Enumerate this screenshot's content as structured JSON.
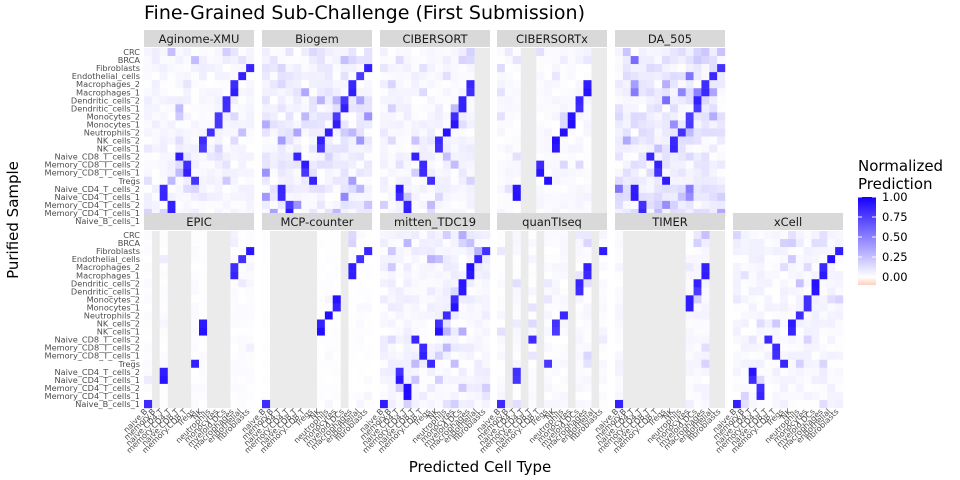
{
  "chart_data": {
    "type": "heatmap",
    "title": "Fine-Grained Sub-Challenge (First Submission)",
    "xlabel": "Predicted Cell Type",
    "ylabel": "Purified Sample",
    "legend": {
      "title_lines": [
        "Normalized",
        "Prediction"
      ],
      "ticks": [
        "1.00",
        "0.75",
        "0.50",
        "0.25",
        "0.00"
      ],
      "range": [
        -0.1,
        1.0
      ],
      "placement": "right",
      "colors": {
        "low": "#ffcfbf",
        "mid": "#ffffff",
        "high": "#1600ff"
      }
    },
    "panel_background": "#ebebeb",
    "strip_background": "#d9d9d9",
    "y_categories": [
      "CRC",
      "BRCA",
      "Fibroblasts",
      "Endothelial_cells",
      "Macrophages_2",
      "Macrophages_1",
      "Dendritic_cells_2",
      "Dendritic_cells_1",
      "Monocytes_2",
      "Monocytes_1",
      "Neutrophils_2",
      "NK_cells_2",
      "NK_cells_1",
      "Naive_CD8_T_cells_2",
      "Memory_CD8_T_cells_2",
      "Memory_CD8_T_cells_1",
      "Tregs",
      "Naive_CD4_T_cells_2",
      "Naive_CD4_T_cells_1",
      "Memory_CD4_T_cells_2",
      "Memory_CD4_T_cells_1",
      "Naive_B_cells_1"
    ],
    "x_categories": [
      "naive.B",
      "memory.B",
      "naive.CD4.T",
      "memory.CD4.T",
      "naive.CD8.T",
      "memory.CD8.T",
      "Tregs",
      "NK",
      "neutrophils",
      "monocytes",
      "myeloid.DCs",
      "macrophages",
      "endothelial",
      "fibroblasts"
    ],
    "panels": [
      "Aginome-XMU",
      "Biogem",
      "CIBERSORT",
      "CIBERSORTx",
      "DA_505",
      "EPIC",
      "MCP-counter",
      "mitten_TDC19",
      "quanTIseq",
      "TIMER",
      "xCell"
    ],
    "panel_profiles": [
      {
        "name": "Aginome-XMU",
        "diag": 0.9,
        "bg": 0.07,
        "missing": []
      },
      {
        "name": "Biogem",
        "diag": 0.9,
        "bg": 0.12,
        "missing": []
      },
      {
        "name": "CIBERSORT",
        "diag": 0.95,
        "bg": 0.07,
        "missing": [
          12,
          13
        ]
      },
      {
        "name": "CIBERSORTx",
        "diag": 0.95,
        "bg": 0.04,
        "missing": [
          3,
          4,
          12,
          13
        ]
      },
      {
        "name": "DA_505",
        "diag": 0.9,
        "bg": 0.15,
        "missing": []
      },
      {
        "name": "EPIC",
        "diag": 0.95,
        "bg": 0.02,
        "missing": [
          1,
          3,
          4,
          5,
          8,
          9,
          10
        ]
      },
      {
        "name": "MCP-counter",
        "diag": 0.95,
        "bg": 0.01,
        "missing": [
          1,
          2,
          3,
          4,
          5,
          6,
          10
        ]
      },
      {
        "name": "mitten_TDC19",
        "diag": 0.95,
        "bg": 0.08,
        "missing": []
      },
      {
        "name": "quanTIseq",
        "diag": 0.9,
        "bg": 0.04,
        "missing": [
          1,
          3,
          5,
          9,
          12
        ]
      },
      {
        "name": "TIMER",
        "diag": 0.9,
        "bg": 0.05,
        "missing": [
          1,
          2,
          3,
          4,
          5,
          6,
          7,
          8,
          12,
          13
        ]
      },
      {
        "name": "xCell",
        "diag": 0.95,
        "bg": 0.06,
        "missing": []
      }
    ]
  }
}
